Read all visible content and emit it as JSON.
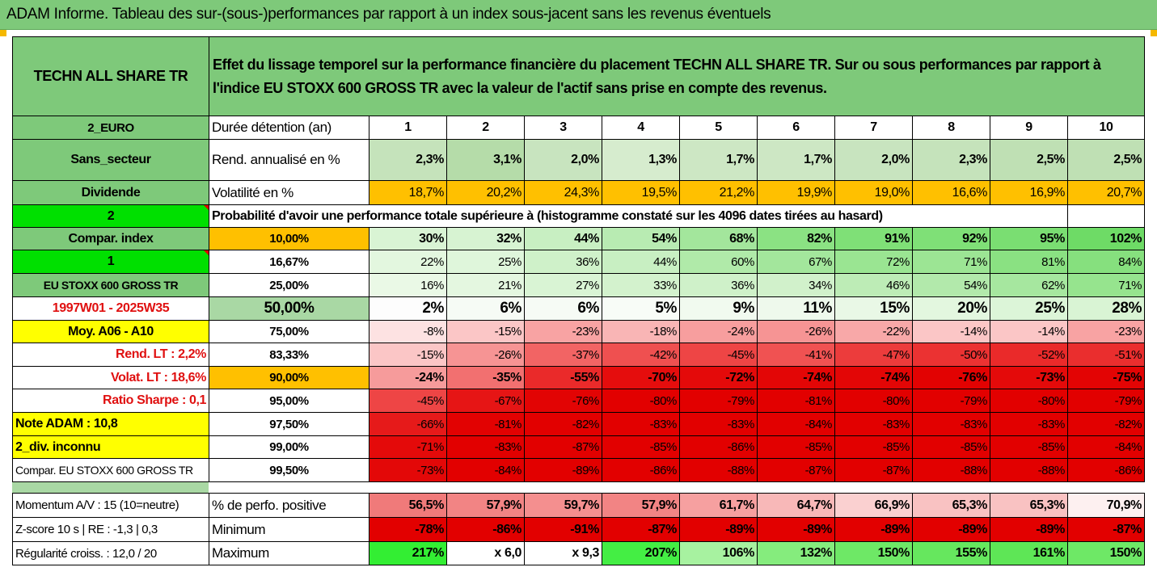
{
  "banner": {
    "title": "ADAM Informe. Tableau des sur-(sous-)performances par rapport à un index sous-jacent sans les revenus éventuels"
  },
  "header": {
    "fund_name": "TECHN ALL SHARE TR",
    "description": "Effet du lissage temporel sur la performance financière du placement TECHN ALL SHARE TR. Sur ou sous performances par rapport à l'indice EU STOXX 600 GROSS TR avec la valeur de l'actif sans prise en compte des revenus."
  },
  "side_labels": {
    "currency": "2_EURO",
    "sector": "Sans_secteur",
    "dividend": "Dividende",
    "two": "2",
    "compar_index": "Compar. index",
    "one": "1",
    "index_name": "EU STOXX 600 GROSS TR",
    "period": "1997W01 - 2025W35",
    "moy": "Moy. A06 - A10",
    "rend_lt": "Rend. LT :   2,2%",
    "volat_lt": "Volat. LT :   18,6%",
    "sharpe": "Ratio Sharpe :   0,1",
    "note": "Note ADAM : 10,8",
    "div": "2_div. inconnu",
    "compar_full": "Compar. EU STOXX 600 GROSS TR"
  },
  "row_labels": {
    "duration": "Durée détention (an)",
    "rend": "Rend. annualisé en %",
    "vol": "Volatilité en %",
    "proba": "Probabilité d'avoir une performance totale supérieure à (histogramme constaté sur les 4096 dates tirées au hasard)"
  },
  "years": [
    "1",
    "2",
    "3",
    "4",
    "5",
    "6",
    "7",
    "8",
    "9",
    "10"
  ],
  "rend": [
    "2,3%",
    "3,1%",
    "2,0%",
    "1,3%",
    "1,7%",
    "1,7%",
    "2,0%",
    "2,3%",
    "2,5%",
    "2,5%"
  ],
  "vol": [
    "18,7%",
    "20,2%",
    "24,3%",
    "19,5%",
    "21,2%",
    "19,9%",
    "19,0%",
    "16,6%",
    "16,9%",
    "20,7%"
  ],
  "prob_rows": [
    {
      "q": "10,00%",
      "v": [
        "30%",
        "32%",
        "44%",
        "54%",
        "68%",
        "82%",
        "91%",
        "92%",
        "95%",
        "102%"
      ]
    },
    {
      "q": "16,67%",
      "v": [
        "22%",
        "25%",
        "36%",
        "44%",
        "60%",
        "67%",
        "72%",
        "71%",
        "81%",
        "84%"
      ]
    },
    {
      "q": "25,00%",
      "v": [
        "16%",
        "21%",
        "27%",
        "33%",
        "36%",
        "34%",
        "46%",
        "54%",
        "62%",
        "71%"
      ]
    },
    {
      "q": "50,00%",
      "v": [
        "2%",
        "6%",
        "6%",
        "5%",
        "9%",
        "11%",
        "15%",
        "20%",
        "25%",
        "28%"
      ]
    },
    {
      "q": "75,00%",
      "v": [
        "-8%",
        "-15%",
        "-23%",
        "-18%",
        "-24%",
        "-26%",
        "-22%",
        "-14%",
        "-14%",
        "-23%"
      ]
    },
    {
      "q": "83,33%",
      "v": [
        "-15%",
        "-26%",
        "-37%",
        "-42%",
        "-45%",
        "-41%",
        "-47%",
        "-50%",
        "-52%",
        "-51%"
      ]
    },
    {
      "q": "90,00%",
      "v": [
        "-24%",
        "-35%",
        "-55%",
        "-70%",
        "-72%",
        "-74%",
        "-74%",
        "-76%",
        "-73%",
        "-75%"
      ]
    },
    {
      "q": "95,00%",
      "v": [
        "-45%",
        "-67%",
        "-76%",
        "-80%",
        "-79%",
        "-81%",
        "-80%",
        "-79%",
        "-80%",
        "-79%"
      ]
    },
    {
      "q": "97,50%",
      "v": [
        "-66%",
        "-81%",
        "-82%",
        "-83%",
        "-83%",
        "-84%",
        "-83%",
        "-83%",
        "-83%",
        "-82%"
      ]
    },
    {
      "q": "99,00%",
      "v": [
        "-71%",
        "-83%",
        "-87%",
        "-85%",
        "-86%",
        "-85%",
        "-85%",
        "-85%",
        "-85%",
        "-84%"
      ]
    },
    {
      "q": "99,50%",
      "v": [
        "-73%",
        "-84%",
        "-89%",
        "-86%",
        "-88%",
        "-87%",
        "-87%",
        "-88%",
        "-88%",
        "-86%"
      ]
    }
  ],
  "footer": {
    "momentum": "Momentum A/V : 15 (10=neutre)",
    "zscore": "Z-score 10 s  |  RE : -1,3  |  0,3",
    "regularite": "Régularité croiss. : 12,0 / 20",
    "pos_label": "% de perfo. positive",
    "min_label": "Minimum",
    "max_label": "Maximum",
    "pos": [
      "56,5%",
      "57,9%",
      "59,7%",
      "57,9%",
      "61,7%",
      "64,7%",
      "66,9%",
      "65,3%",
      "65,3%",
      "70,9%"
    ],
    "min": [
      "-78%",
      "-86%",
      "-91%",
      "-87%",
      "-89%",
      "-89%",
      "-89%",
      "-89%",
      "-89%",
      "-87%"
    ],
    "max": [
      "217%",
      "x 6,0",
      "x 9,3",
      "207%",
      "106%",
      "132%",
      "150%",
      "155%",
      "161%",
      "150%"
    ]
  },
  "colors": {
    "rend": [
      "#c5e3bb",
      "#b5dca9",
      "#c8e4bf",
      "#d6ecce",
      "#cde7c4",
      "#cde7c4",
      "#c8e4bf",
      "#c5e3bb",
      "#bfe0b4",
      "#bfe0b4"
    ],
    "vol": [
      "#ffc000",
      "#ffc000",
      "#ffc000",
      "#ffc000",
      "#ffc000",
      "#ffc000",
      "#ffc000",
      "#ffc000",
      "#ffc000",
      "#ffc000"
    ],
    "prob": [
      [
        "#d9f4d4",
        "#d7f3d2",
        "#c8efc2",
        "#b8ebb2",
        "#a3e69c",
        "#8be283",
        "#7fe077",
        "#7fe077",
        "#7ade72",
        "#6edb66"
      ],
      [
        "#e3f7df",
        "#dff6db",
        "#cff1c9",
        "#c8efc2",
        "#b0eaa9",
        "#a3e69c",
        "#9ae592",
        "#9ce594",
        "#8ae182",
        "#86e07e"
      ],
      [
        "#eaf9e6",
        "#e4f7e0",
        "#d9f4d4",
        "#d3f2cd",
        "#cff1c9",
        "#d1f1cb",
        "#bdecb6",
        "#b2e9ab",
        "#a6e79f",
        "#96e48e"
      ],
      [
        "#fdfdfd",
        "#f6fbf5",
        "#f6fbf5",
        "#f8fcf7",
        "#f1faef",
        "#eef9ec",
        "#e9f8e6",
        "#e3f7df",
        "#dcf5d8",
        "#d9f4d4"
      ],
      [
        "#fde2e2",
        "#fbc6c6",
        "#f8a3a3",
        "#f9b5b5",
        "#f79e9e",
        "#f69494",
        "#f8a8a8",
        "#fbc6c6",
        "#fbc6c6",
        "#f8a3a3"
      ],
      [
        "#fbc6c6",
        "#f69494",
        "#f26464",
        "#ef5050",
        "#ee4545",
        "#f05252",
        "#ec3c3c",
        "#eb3232",
        "#ea2a2a",
        "#ea2e2e"
      ],
      [
        "#f69b9b",
        "#f27070",
        "#ea2a2a",
        "#e50d0d",
        "#e40a0a",
        "#e30606",
        "#e30606",
        "#e20202",
        "#e40a0a",
        "#e30404"
      ],
      [
        "#ee4545",
        "#e61515",
        "#e20404",
        "#e20000",
        "#e20000",
        "#e20000",
        "#e20000",
        "#e20000",
        "#e20000",
        "#e20000"
      ],
      [
        "#e61a1a",
        "#e20202",
        "#e20000",
        "#e20000",
        "#e20000",
        "#e20000",
        "#e20000",
        "#e20000",
        "#e20000",
        "#e20000"
      ],
      [
        "#e40a0a",
        "#e20000",
        "#e20000",
        "#e20000",
        "#e20000",
        "#e20000",
        "#e20000",
        "#e20000",
        "#e20000",
        "#e20000"
      ],
      [
        "#e30808",
        "#e20000",
        "#e20000",
        "#e20000",
        "#e20000",
        "#e20000",
        "#e20000",
        "#e20000",
        "#e20000",
        "#e20000"
      ]
    ],
    "pos": [
      "#f07a7a",
      "#f28484",
      "#f48f8f",
      "#f28484",
      "#f6a0a0",
      "#f8b8b8",
      "#fad0d0",
      "#f9c2c2",
      "#f9c2c2",
      "#fdf0f0"
    ],
    "min": [
      "#e20000",
      "#e20000",
      "#e20000",
      "#e20000",
      "#e20000",
      "#e20000",
      "#e20000",
      "#e20000",
      "#e20000",
      "#e20000"
    ],
    "max": [
      "#33ee33",
      "#ffffff",
      "#ffffff",
      "#44ee44",
      "#a7f2a0",
      "#85ec7d",
      "#6ee866",
      "#66e75e",
      "#5ee656",
      "#6ee866"
    ]
  }
}
